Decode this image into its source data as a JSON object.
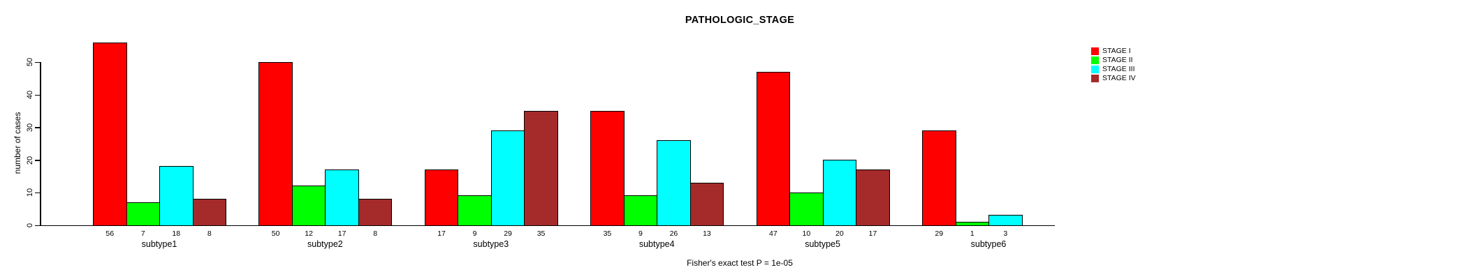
{
  "chart_data": {
    "type": "bar",
    "grouped": true,
    "title": "PATHOLOGIC_STAGE",
    "xlabel": "",
    "ylabel": "number of cases",
    "categories": [
      "subtype1",
      "subtype2",
      "subtype3",
      "subtype4",
      "subtype5",
      "subtype6"
    ],
    "series": [
      {
        "name": "STAGE I",
        "color": "#FF0000",
        "values": [
          56,
          50,
          17,
          35,
          47,
          29
        ]
      },
      {
        "name": "STAGE II",
        "color": "#00FF00",
        "values": [
          7,
          12,
          9,
          9,
          10,
          1
        ]
      },
      {
        "name": "STAGE III",
        "color": "#00FFFF",
        "values": [
          18,
          17,
          29,
          26,
          20,
          3
        ]
      },
      {
        "name": "STAGE IV",
        "color": "#A52A2A",
        "values": [
          8,
          8,
          35,
          13,
          17,
          0
        ]
      }
    ],
    "yticks": [
      0,
      10,
      20,
      30,
      40,
      50
    ],
    "ylim": [
      0,
      57
    ],
    "grid": false,
    "bar_value_labels_shown": true,
    "zero_value_labels_hidden": true,
    "legend_position": "top-right-outside",
    "legend_entries": [
      "STAGE I",
      "STAGE II",
      "STAGE III",
      "STAGE IV"
    ],
    "footnote": "Fisher's exact test P = 1e-05"
  }
}
